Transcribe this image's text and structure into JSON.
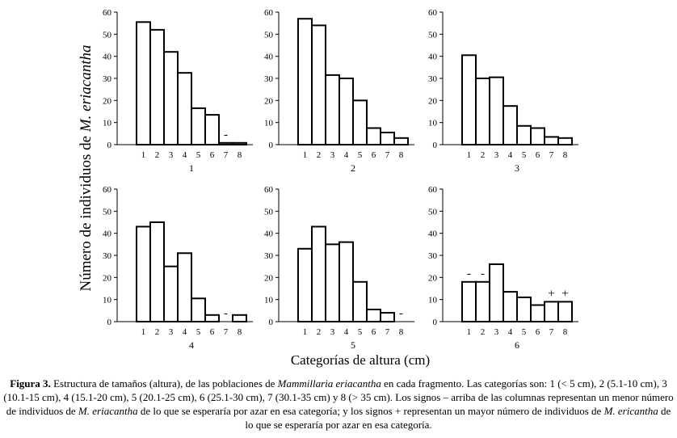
{
  "chart_data": {
    "type": "bar",
    "title": "",
    "ylabel_prefix": "Número de individuos de ",
    "ylabel_species": "M. eriacantha",
    "xlabel": "Categorías de altura (cm)",
    "ylim": [
      0,
      60
    ],
    "yticks": [
      0,
      10,
      20,
      30,
      40,
      50,
      60
    ],
    "categories": [
      "1",
      "2",
      "3",
      "4",
      "5",
      "6",
      "7",
      "8"
    ],
    "panels": [
      {
        "label": "1",
        "values": [
          55.5,
          52,
          42,
          32.5,
          16.5,
          13.5,
          0.8,
          0.8
        ],
        "signs": [
          {
            "category": "7",
            "text": "-"
          }
        ]
      },
      {
        "label": "2",
        "values": [
          57,
          54,
          31.5,
          30,
          20,
          7.5,
          5.5,
          3
        ],
        "signs": []
      },
      {
        "label": "3",
        "values": [
          40.5,
          30,
          30.5,
          17.5,
          8.5,
          7.5,
          3.5,
          3
        ],
        "signs": []
      },
      {
        "label": "4",
        "values": [
          43,
          45,
          25,
          31,
          10.5,
          3,
          0,
          3
        ],
        "signs": [
          {
            "category": "7",
            "text": "-"
          }
        ]
      },
      {
        "label": "5",
        "values": [
          33,
          43,
          35,
          36,
          18,
          5.5,
          4,
          0
        ],
        "signs": [
          {
            "category": "8",
            "text": "-"
          }
        ]
      },
      {
        "label": "6",
        "values": [
          18,
          18,
          26,
          13.5,
          11,
          7.5,
          9,
          9
        ],
        "signs": [
          {
            "category": "1",
            "text": "-"
          },
          {
            "category": "2",
            "text": "-"
          },
          {
            "category": "7",
            "text": "+"
          },
          {
            "category": "8",
            "text": "+"
          }
        ]
      }
    ]
  },
  "caption": {
    "label": "Figura 3.",
    "t1": " Estructura de tamaños (altura), de las poblaciones de ",
    "i1": "Mammillaria eriacantha",
    "t2": " en cada fragmento. Las categorías son: 1 (< 5 cm), 2 (5.1-10 cm), 3 (10.1-15 cm), 4 (15.1-20 cm), 5 (20.1-25 cm), 6 (25.1-30 cm), 7 (30.1-35 cm) y 8 (> 35 cm). Los signos – arriba de las columnas representan un menor número de individuos de ",
    "i2": "M. eriacantha",
    "t3": " de lo que se esperaría por azar en esa categoría; y los signos + representan un mayor número de individuos de ",
    "i3": "M. ericantha",
    "t4": " de lo que se esperaría por azar en esa categoría."
  }
}
